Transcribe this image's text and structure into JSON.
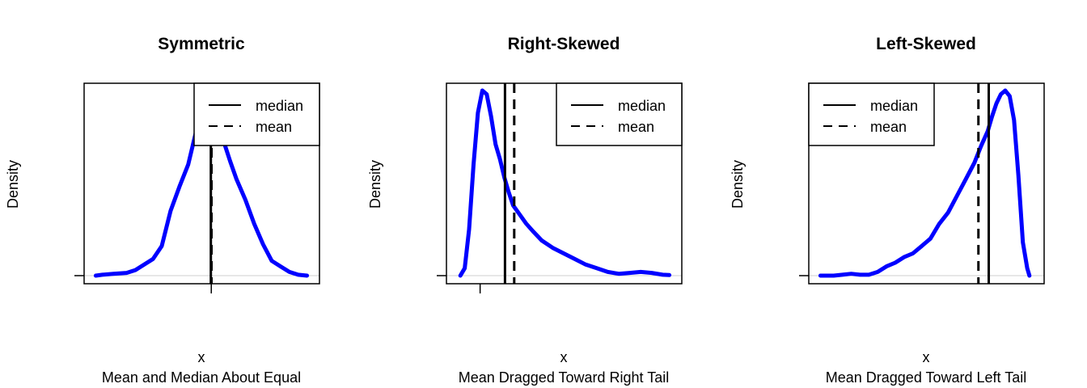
{
  "colors": {
    "curve": "#0000ff",
    "line": "#000000",
    "baseline": "#cfcfcf",
    "background": "#ffffff"
  },
  "chart_data": [
    {
      "type": "line",
      "title": "Symmetric",
      "xlabel": "x",
      "ylabel": "Density",
      "caption": "Mean and Median About Equal",
      "xlim": [
        0,
        100
      ],
      "ylim": [
        0,
        1.0
      ],
      "legend": {
        "position": "top-right",
        "entries": [
          "median",
          "mean"
        ]
      },
      "series": [
        {
          "name": "density",
          "x": [
            2,
            5,
            10,
            16,
            20,
            24,
            28,
            32,
            36,
            40,
            44,
            48,
            50,
            52,
            54,
            56,
            58,
            60,
            63,
            66,
            70,
            74,
            78,
            82,
            86,
            90,
            94,
            98
          ],
          "y": [
            0.0,
            0.005,
            0.01,
            0.015,
            0.03,
            0.06,
            0.09,
            0.16,
            0.35,
            0.48,
            0.6,
            0.8,
            0.9,
            0.93,
            0.93,
            0.91,
            0.84,
            0.73,
            0.62,
            0.52,
            0.41,
            0.28,
            0.17,
            0.08,
            0.05,
            0.02,
            0.005,
            0.0
          ]
        }
      ],
      "median": 54.3,
      "mean": 54.6,
      "x_ticks": [
        54.5
      ],
      "y_ticks": [
        0
      ]
    },
    {
      "type": "line",
      "title": "Right-Skewed",
      "xlabel": "x",
      "ylabel": "Density",
      "caption": "Mean Dragged Toward Right Tail",
      "xlim": [
        0,
        100
      ],
      "ylim": [
        0,
        1.0
      ],
      "legend": {
        "position": "top-right",
        "entries": [
          "median",
          "mean"
        ]
      },
      "series": [
        {
          "name": "density",
          "x": [
            3,
            5,
            7,
            9,
            11,
            13,
            15,
            17,
            19,
            21,
            23,
            25,
            27,
            30,
            33,
            36,
            40,
            45,
            50,
            55,
            60,
            65,
            70,
            75,
            80,
            85,
            90,
            95,
            98
          ],
          "y": [
            0.0,
            0.04,
            0.25,
            0.6,
            0.88,
            1.0,
            0.98,
            0.86,
            0.71,
            0.63,
            0.53,
            0.45,
            0.38,
            0.33,
            0.28,
            0.24,
            0.19,
            0.15,
            0.12,
            0.09,
            0.06,
            0.04,
            0.02,
            0.01,
            0.015,
            0.02,
            0.015,
            0.005,
            0.003
          ]
        }
      ],
      "median": 23.3,
      "mean": 27.5,
      "x_ticks": [
        12
      ],
      "y_ticks": [
        0
      ]
    },
    {
      "type": "line",
      "title": "Left-Skewed",
      "xlabel": "x",
      "ylabel": "Density",
      "caption": "Mean Dragged Toward Left Tail",
      "xlim": [
        0,
        100
      ],
      "ylim": [
        0,
        1.0
      ],
      "legend": {
        "position": "top-left",
        "entries": [
          "median",
          "mean"
        ]
      },
      "series": [
        {
          "name": "density",
          "x": [
            2,
            8,
            12,
            16,
            20,
            24,
            28,
            32,
            36,
            40,
            44,
            48,
            52,
            56,
            60,
            64,
            68,
            72,
            75,
            78,
            80,
            82,
            84,
            86,
            88,
            90,
            92,
            94,
            96,
            97
          ],
          "y": [
            0.0,
            0.0,
            0.005,
            0.01,
            0.005,
            0.005,
            0.02,
            0.05,
            0.07,
            0.1,
            0.12,
            0.16,
            0.2,
            0.28,
            0.34,
            0.43,
            0.52,
            0.61,
            0.7,
            0.78,
            0.86,
            0.93,
            0.98,
            1.0,
            0.97,
            0.84,
            0.54,
            0.18,
            0.04,
            0.0
          ]
        }
      ],
      "median": 78.5,
      "mean": 73.8,
      "x_ticks": [],
      "y_ticks": [
        0
      ]
    }
  ]
}
